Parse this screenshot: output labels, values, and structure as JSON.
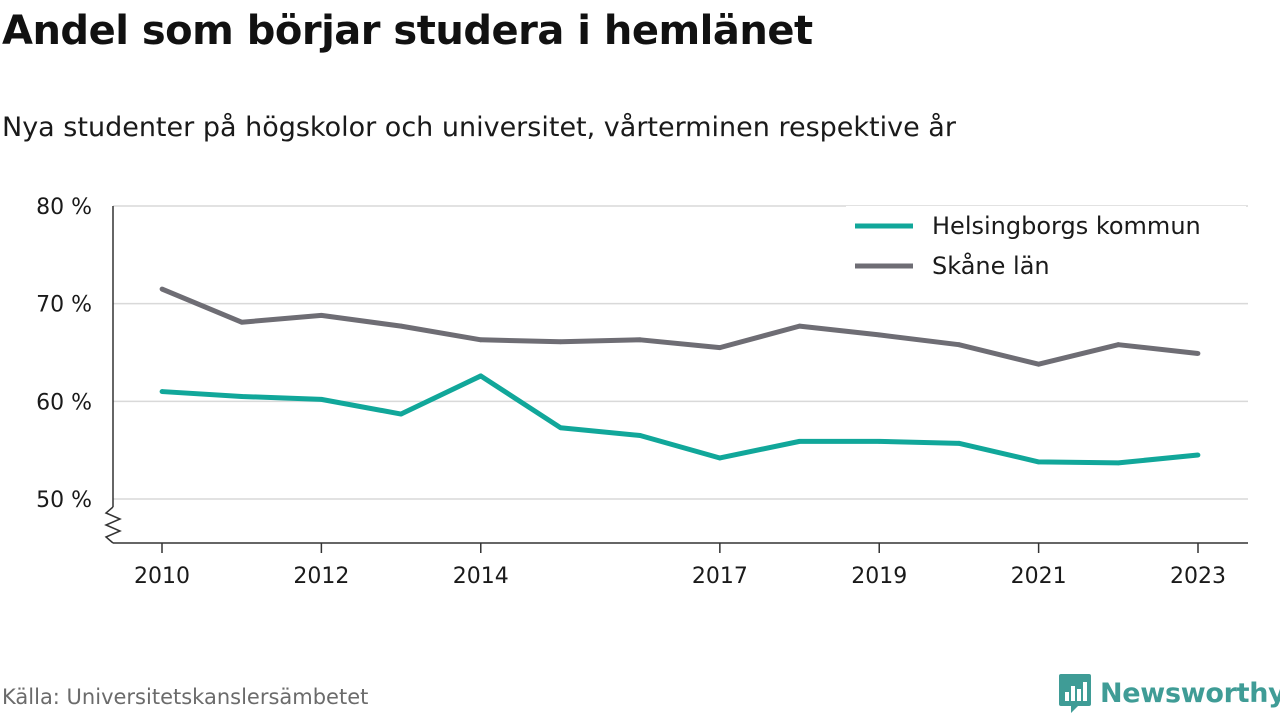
{
  "header": {
    "title": "Andel som börjar studera i hemlänet",
    "subtitle": "Nya studenter på högskolor och universitet, vårterminen respektive år"
  },
  "footer": {
    "source": "Källa: Universitetskanslersämbetet",
    "brand": "Newsworthy",
    "brand_icon": "bar-chart-badge-icon"
  },
  "colors": {
    "helsingborg": "#11a79a",
    "skane": "#6e6d74",
    "grid": "#d9d9d9",
    "axis": "#333333",
    "brand": "#3f9c96"
  },
  "chart_data": {
    "type": "line",
    "title": "Andel som börjar studera i hemlänet",
    "subtitle": "Nya studenter på högskolor och universitet, vårterminen respektive år",
    "xlabel": "",
    "ylabel": "",
    "x": [
      2010,
      2011,
      2012,
      2013,
      2014,
      2015,
      2016,
      2017,
      2018,
      2019,
      2020,
      2021,
      2022,
      2023
    ],
    "x_ticks": [
      "2010",
      "2012",
      "2014",
      "2017",
      "2019",
      "2021",
      "2023"
    ],
    "y_ticks": [
      "80 %",
      "70 %",
      "60 %",
      "50 %"
    ],
    "y_tick_values": [
      80,
      70,
      60,
      50
    ],
    "ylim": [
      45.5,
      80
    ],
    "axis_break": true,
    "grid": true,
    "legend_position": "top-right",
    "series": [
      {
        "name": "Helsingborgs kommun",
        "color": "#11a79a",
        "values": [
          61.0,
          60.5,
          60.2,
          58.7,
          62.6,
          57.3,
          56.5,
          54.2,
          55.9,
          55.9,
          55.7,
          53.8,
          53.7,
          54.5
        ]
      },
      {
        "name": "Skåne län",
        "color": "#6e6d74",
        "values": [
          71.5,
          68.1,
          68.8,
          67.7,
          66.3,
          66.1,
          66.3,
          65.5,
          67.7,
          66.8,
          65.8,
          63.8,
          65.8,
          64.9
        ]
      }
    ]
  }
}
